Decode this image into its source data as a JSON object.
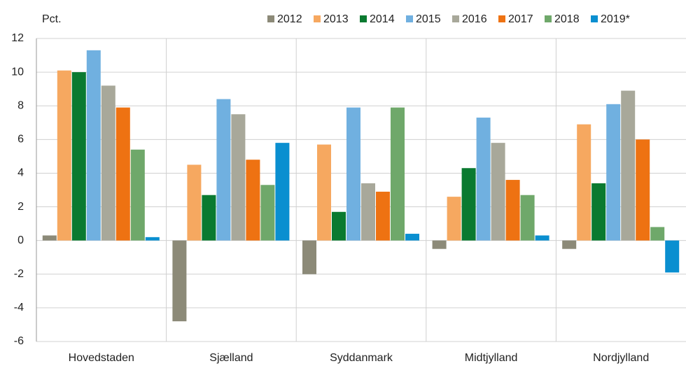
{
  "chart_data": {
    "type": "bar",
    "y_label": "Pct.",
    "categories": [
      "Hovedstaden",
      "Sjælland",
      "Syddanmark",
      "Midtjylland",
      "Nordjylland"
    ],
    "series": [
      {
        "name": "2012",
        "color": "#8c8a78",
        "values": [
          0.3,
          -4.8,
          -2.0,
          -0.5,
          -0.5
        ]
      },
      {
        "name": "2013",
        "color": "#f6a860",
        "values": [
          10.1,
          4.5,
          5.7,
          2.6,
          6.9
        ]
      },
      {
        "name": "2014",
        "color": "#0a7a30",
        "values": [
          10.0,
          2.7,
          1.7,
          4.3,
          3.4
        ]
      },
      {
        "name": "2015",
        "color": "#70b0e0",
        "values": [
          11.3,
          8.4,
          7.9,
          7.3,
          8.1
        ]
      },
      {
        "name": "2016",
        "color": "#a8a89a",
        "values": [
          9.2,
          7.5,
          3.4,
          5.8,
          8.9
        ]
      },
      {
        "name": "2017",
        "color": "#ee7212",
        "values": [
          7.9,
          4.8,
          2.9,
          3.6,
          6.0
        ]
      },
      {
        "name": "2018",
        "color": "#6fa86a",
        "values": [
          5.4,
          3.3,
          7.9,
          2.7,
          0.8
        ]
      },
      {
        "name": "2019*",
        "color": "#0a8fd0",
        "values": [
          0.2,
          5.8,
          0.4,
          0.3,
          -1.9
        ]
      }
    ],
    "ylim": [
      -6,
      12
    ],
    "yticks": [
      -6,
      -4,
      -2,
      0,
      2,
      4,
      6,
      8,
      10,
      12
    ],
    "grid": true
  }
}
